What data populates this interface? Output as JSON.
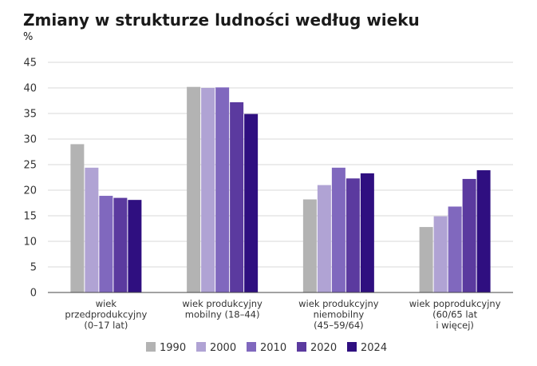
{
  "chart_data": {
    "type": "bar",
    "title": "Zmiany w strukturze ludności według wieku",
    "unit": "%",
    "ylim": [
      0,
      45
    ],
    "yticks": [
      0,
      5,
      10,
      15,
      20,
      25,
      30,
      35,
      40,
      45
    ],
    "grid": true,
    "legend_position": "bottom",
    "categories": [
      [
        "wiek",
        "przedprodukcyjny",
        "(0–17 lat)"
      ],
      [
        "wiek produkcyjny",
        "mobilny (18–44)"
      ],
      [
        "wiek produkcyjny",
        "niemobilny",
        "(45–59/64)"
      ],
      [
        "wiek poprodukcyjny",
        "(60/65 lat",
        "i więcej)"
      ]
    ],
    "series": [
      {
        "name": "1990",
        "color": "#b3b3b3",
        "values": [
          29.0,
          40.2,
          18.2,
          12.8
        ]
      },
      {
        "name": "2000",
        "color": "#b0a3d4",
        "values": [
          24.4,
          40.0,
          21.0,
          14.9
        ]
      },
      {
        "name": "2010",
        "color": "#8068be",
        "values": [
          18.9,
          40.1,
          24.4,
          16.8
        ]
      },
      {
        "name": "2020",
        "color": "#5b3a9f",
        "values": [
          18.5,
          37.2,
          22.3,
          22.2
        ]
      },
      {
        "name": "2024",
        "color": "#2f0f80",
        "values": [
          18.1,
          34.9,
          23.3,
          23.9
        ]
      }
    ]
  }
}
